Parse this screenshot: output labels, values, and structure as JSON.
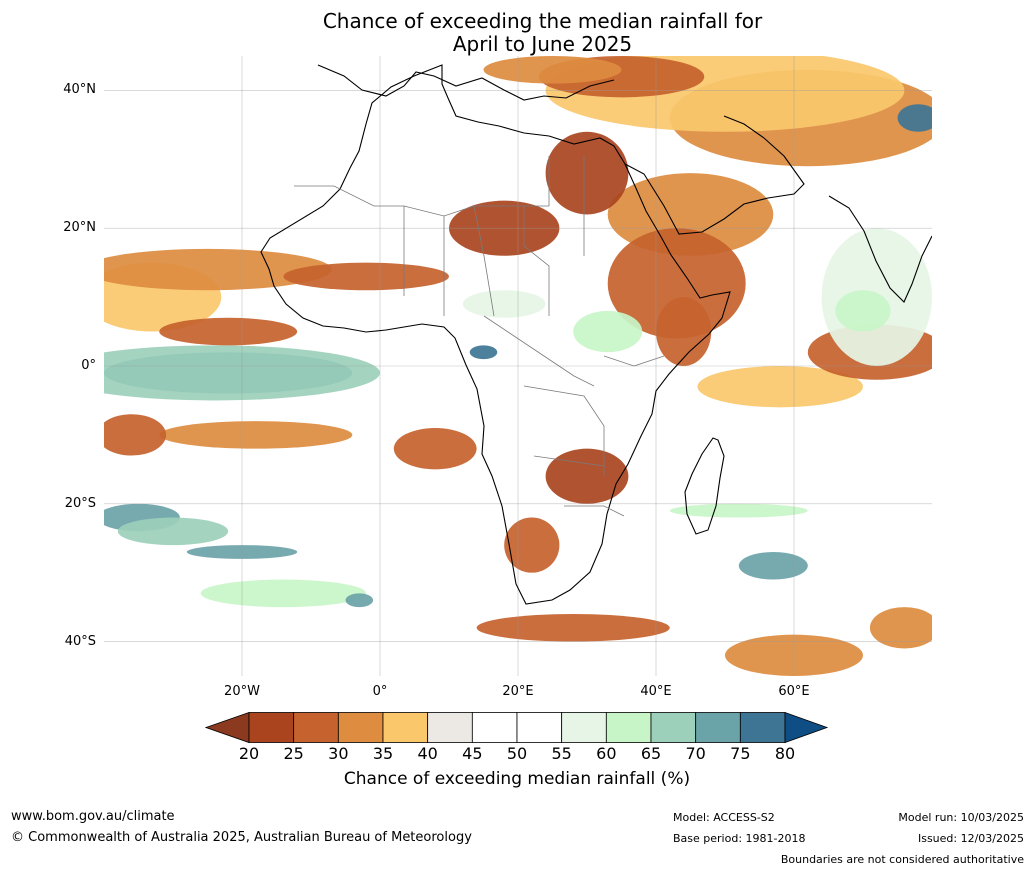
{
  "title_line1": "Chance of exceeding the median rainfall for",
  "title_line2": "April to June 2025",
  "map": {
    "lon_range": [
      -40,
      80
    ],
    "lat_range": [
      -45,
      45
    ],
    "lat_labels": [
      {
        "text": "40°N",
        "lat": 40
      },
      {
        "text": "20°N",
        "lat": 20
      },
      {
        "text": "0°",
        "lat": 0
      },
      {
        "text": "20°S",
        "lat": -20
      },
      {
        "text": "40°S",
        "lat": -40
      }
    ],
    "lon_labels": [
      {
        "text": "20°W",
        "lon": -20
      },
      {
        "text": "0°",
        "lon": 0
      },
      {
        "text": "20°E",
        "lon": 20
      },
      {
        "text": "40°E",
        "lon": 40
      },
      {
        "text": "60°E",
        "lon": 60
      }
    ],
    "colors": {
      "below": [
        "#8b3a1f",
        "#a9441f",
        "#c5622e",
        "#dd8c40",
        "#fac86b"
      ],
      "neutral": [
        "#ece9e5",
        "#ffffff",
        "#ffffff"
      ],
      "above": [
        "#e6f5e6",
        "#c8f5c8",
        "#9cd0bb",
        "#6aa3a8",
        "#3e7595",
        "#0f4d85"
      ],
      "coast": "#000000",
      "border": "#7a7a7a",
      "grid": "#9a9a9a"
    },
    "regions": [
      {
        "kind": "dry",
        "level": 2,
        "lon": 62,
        "lat": 36,
        "rx": 20,
        "ry": 7
      },
      {
        "kind": "dry",
        "level": 1,
        "lon": 50,
        "lat": 40,
        "rx": 26,
        "ry": 6
      },
      {
        "kind": "dry",
        "level": 3,
        "lon": 35,
        "lat": 42,
        "rx": 12,
        "ry": 3
      },
      {
        "kind": "dry",
        "level": 2,
        "lon": 25,
        "lat": 43,
        "rx": 10,
        "ry": 2
      },
      {
        "kind": "dry",
        "level": 2,
        "lon": 45,
        "lat": 22,
        "rx": 12,
        "ry": 6
      },
      {
        "kind": "dry",
        "level": 3,
        "lon": 43,
        "lat": 12,
        "rx": 10,
        "ry": 8
      },
      {
        "kind": "dry",
        "level": 4,
        "lon": 30,
        "lat": 28,
        "rx": 6,
        "ry": 6
      },
      {
        "kind": "dry",
        "level": 1,
        "lon": -33,
        "lat": 10,
        "rx": 10,
        "ry": 5
      },
      {
        "kind": "dry",
        "level": 2,
        "lon": -25,
        "lat": 14,
        "rx": 18,
        "ry": 3
      },
      {
        "kind": "dry",
        "level": 3,
        "lon": -2,
        "lat": 13,
        "rx": 12,
        "ry": 2
      },
      {
        "kind": "dry",
        "level": 3,
        "lon": -22,
        "lat": 5,
        "rx": 10,
        "ry": 2
      },
      {
        "kind": "dry",
        "level": 1,
        "lon": 58,
        "lat": -3,
        "rx": 12,
        "ry": 3
      },
      {
        "kind": "dry",
        "level": 3,
        "lon": 72,
        "lat": 2,
        "rx": 10,
        "ry": 4
      },
      {
        "kind": "dry",
        "level": 3,
        "lon": 44,
        "lat": 5,
        "rx": 4,
        "ry": 5
      },
      {
        "kind": "dry",
        "level": 2,
        "lon": -18,
        "lat": -10,
        "rx": 14,
        "ry": 2
      },
      {
        "kind": "dry",
        "level": 3,
        "lon": -36,
        "lat": -10,
        "rx": 5,
        "ry": 3
      },
      {
        "kind": "dry",
        "level": 3,
        "lon": 22,
        "lat": -26,
        "rx": 4,
        "ry": 4
      },
      {
        "kind": "dry",
        "level": 3,
        "lon": 8,
        "lat": -12,
        "rx": 6,
        "ry": 3
      },
      {
        "kind": "dry",
        "level": 3,
        "lon": 28,
        "lat": -38,
        "rx": 14,
        "ry": 2
      },
      {
        "kind": "dry",
        "level": 2,
        "lon": 60,
        "lat": -42,
        "rx": 10,
        "ry": 3
      },
      {
        "kind": "dry",
        "level": 2,
        "lon": 76,
        "lat": -38,
        "rx": 5,
        "ry": 3
      },
      {
        "kind": "dry",
        "level": 4,
        "lon": 30,
        "lat": -16,
        "rx": 6,
        "ry": 4
      },
      {
        "kind": "dry",
        "level": 4,
        "lon": 18,
        "lat": 20,
        "rx": 8,
        "ry": 4
      },
      {
        "kind": "wet",
        "level": 5,
        "lon": -22,
        "lat": -1,
        "rx": 18,
        "ry": 3
      },
      {
        "kind": "wet",
        "level": 3,
        "lon": -24,
        "lat": -1,
        "rx": 24,
        "ry": 4
      },
      {
        "kind": "wet",
        "level": 5,
        "lon": 15,
        "lat": 2,
        "rx": 2,
        "ry": 1
      },
      {
        "kind": "wet",
        "level": 2,
        "lon": 33,
        "lat": 5,
        "rx": 5,
        "ry": 3
      },
      {
        "kind": "wet",
        "level": 1,
        "lon": 72,
        "lat": 10,
        "rx": 8,
        "ry": 10
      },
      {
        "kind": "wet",
        "level": 2,
        "lon": 70,
        "lat": 8,
        "rx": 4,
        "ry": 3
      },
      {
        "kind": "wet",
        "level": 4,
        "lon": -35,
        "lat": -22,
        "rx": 6,
        "ry": 2
      },
      {
        "kind": "wet",
        "level": 3,
        "lon": -30,
        "lat": -24,
        "rx": 8,
        "ry": 2
      },
      {
        "kind": "wet",
        "level": 4,
        "lon": -20,
        "lat": -27,
        "rx": 8,
        "ry": 1
      },
      {
        "kind": "wet",
        "level": 2,
        "lon": -14,
        "lat": -33,
        "rx": 12,
        "ry": 2
      },
      {
        "kind": "wet",
        "level": 4,
        "lon": -3,
        "lat": -34,
        "rx": 2,
        "ry": 1
      },
      {
        "kind": "wet",
        "level": 4,
        "lon": 57,
        "lat": -29,
        "rx": 5,
        "ry": 2
      },
      {
        "kind": "wet",
        "level": 2,
        "lon": 52,
        "lat": -21,
        "rx": 10,
        "ry": 1
      },
      {
        "kind": "wet",
        "level": 5,
        "lon": 78,
        "lat": 36,
        "rx": 3,
        "ry": 2
      },
      {
        "kind": "wet",
        "level": 1,
        "lon": 18,
        "lat": 9,
        "rx": 6,
        "ry": 2
      }
    ]
  },
  "colorbar": {
    "ticks": [
      "20",
      "25",
      "30",
      "35",
      "40",
      "45",
      "50",
      "55",
      "60",
      "65",
      "70",
      "75",
      "80"
    ],
    "colors": [
      "#a9441f",
      "#c5622e",
      "#dd8c40",
      "#fac86b",
      "#ece9e5",
      "#ffffff",
      "#ffffff",
      "#e6f5e6",
      "#c8f5c8",
      "#9cd0bb",
      "#6aa3a8",
      "#3e7595"
    ],
    "under_color": "#8b3a1f",
    "over_color": "#0f4d85",
    "title": "Chance of exceeding median rainfall (%)"
  },
  "footer": {
    "website": "www.bom.gov.au/climate",
    "copyright": "© Commonwealth of Australia 2025, Australian Bureau of Meteorology",
    "model": "Model: ACCESS-S2",
    "base_period": "Base period: 1981-2018",
    "model_run": "Model run: 10/03/2025",
    "issued": "Issued: 12/03/2025",
    "disclaimer": "Boundaries are not considered authoritative"
  }
}
